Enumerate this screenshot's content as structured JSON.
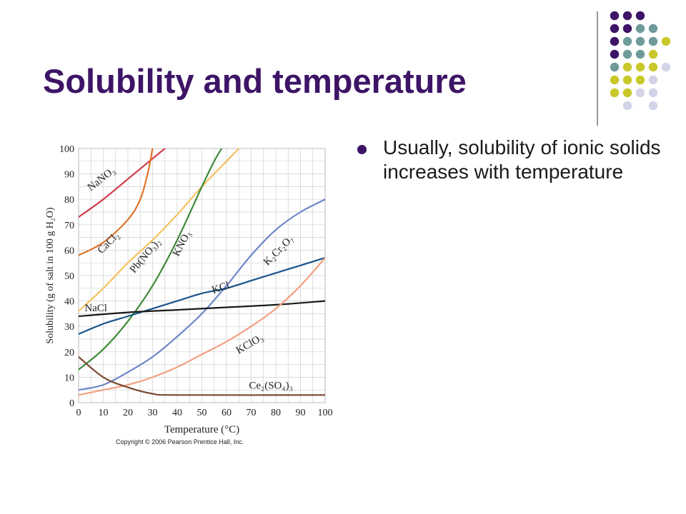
{
  "slide": {
    "title": "Solubility and temperature",
    "bullets": [
      "Usually, solubility of ionic solids increases with temperature"
    ],
    "copyright": "Copyright © 2006 Pearson Prentice Hall, Inc."
  },
  "decor": {
    "dot_grid_rows": [
      [
        "purple",
        "purple",
        "purple",
        null,
        null
      ],
      [
        "purple",
        "purple",
        "teal",
        "teal",
        null
      ],
      [
        "purple",
        "teal",
        "teal",
        "teal",
        "lime"
      ],
      [
        "purple",
        "teal",
        "teal",
        "lime",
        null
      ],
      [
        "teal",
        "lime",
        "lime",
        "lime",
        "lavender"
      ],
      [
        "lime",
        "lime",
        "lime",
        "lavender",
        null
      ],
      [
        "lime",
        "lime",
        "lavender",
        "lavender",
        null
      ],
      [
        null,
        "lavender",
        null,
        "lavender",
        null
      ]
    ],
    "colors": {
      "purple": "#3d1466",
      "teal": "#6e9a9a",
      "lime": "#c9c82a",
      "lavender": "#d3d3e8"
    }
  },
  "chart_data": {
    "type": "line",
    "xlabel": "Temperature (°C)",
    "ylabel": "Solubility (g of salt in 100 g H₂O)",
    "xlim": [
      0,
      100
    ],
    "ylim": [
      0,
      100
    ],
    "xticks": [
      0,
      10,
      20,
      30,
      40,
      50,
      60,
      70,
      80,
      90,
      100
    ],
    "yticks": [
      0,
      10,
      20,
      30,
      40,
      50,
      60,
      70,
      80,
      90,
      100
    ],
    "grid": true,
    "series": [
      {
        "name": "NaNO₃",
        "color": "#d13a4a",
        "points": [
          [
            0,
            73
          ],
          [
            10,
            80
          ],
          [
            20,
            88
          ],
          [
            30,
            96
          ],
          [
            35,
            100
          ]
        ]
      },
      {
        "name": "CaCl₂",
        "color": "#e0742a",
        "points": [
          [
            0,
            58
          ],
          [
            10,
            63
          ],
          [
            20,
            72
          ],
          [
            25,
            80
          ],
          [
            28,
            90
          ],
          [
            30,
            100
          ]
        ]
      },
      {
        "name": "Pb(NO₃)₂",
        "color": "#f5c260",
        "points": [
          [
            0,
            36
          ],
          [
            10,
            45
          ],
          [
            20,
            55
          ],
          [
            30,
            64
          ],
          [
            40,
            74
          ],
          [
            50,
            85
          ],
          [
            60,
            95
          ],
          [
            65,
            100
          ]
        ]
      },
      {
        "name": "KNO₃",
        "color": "#3e8a36",
        "points": [
          [
            0,
            13
          ],
          [
            10,
            21
          ],
          [
            20,
            32
          ],
          [
            30,
            46
          ],
          [
            40,
            64
          ],
          [
            50,
            85
          ],
          [
            55,
            95
          ],
          [
            58,
            100
          ]
        ]
      },
      {
        "name": "K₂Cr₂O₇",
        "color": "#6e86c8",
        "points": [
          [
            0,
            5
          ],
          [
            10,
            7
          ],
          [
            20,
            12
          ],
          [
            30,
            18
          ],
          [
            40,
            26
          ],
          [
            50,
            35
          ],
          [
            60,
            46
          ],
          [
            70,
            58
          ],
          [
            80,
            68
          ],
          [
            90,
            75
          ],
          [
            100,
            80
          ]
        ]
      },
      {
        "name": "KCl",
        "color": "#18558a",
        "points": [
          [
            0,
            27
          ],
          [
            10,
            31
          ],
          [
            20,
            34
          ],
          [
            30,
            37
          ],
          [
            40,
            40
          ],
          [
            50,
            43
          ],
          [
            60,
            45
          ],
          [
            70,
            48
          ],
          [
            80,
            51
          ],
          [
            90,
            54
          ],
          [
            100,
            57
          ]
        ]
      },
      {
        "name": "NaCl",
        "color": "#1a1a1a",
        "points": [
          [
            0,
            34
          ],
          [
            20,
            35.5
          ],
          [
            40,
            36.5
          ],
          [
            60,
            37.5
          ],
          [
            80,
            38.5
          ],
          [
            100,
            40
          ]
        ]
      },
      {
        "name": "KClO₃",
        "color": "#f2a080",
        "points": [
          [
            0,
            3
          ],
          [
            10,
            5
          ],
          [
            20,
            7
          ],
          [
            30,
            10
          ],
          [
            40,
            14
          ],
          [
            50,
            19
          ],
          [
            60,
            24
          ],
          [
            70,
            30
          ],
          [
            80,
            37
          ],
          [
            90,
            46
          ],
          [
            100,
            57
          ]
        ]
      },
      {
        "name": "Ce₂(SO₄)₃",
        "color": "#7a4a33",
        "points": [
          [
            0,
            18
          ],
          [
            10,
            10
          ],
          [
            20,
            6
          ],
          [
            30,
            3.5
          ],
          [
            40,
            3
          ],
          [
            100,
            3
          ]
        ]
      }
    ],
    "curve_labels": [
      {
        "text": "NaNO₃",
        "x": 10,
        "y": 87,
        "angle": -38
      },
      {
        "text": "CaCl₂",
        "x": 13,
        "y": 62,
        "angle": -45
      },
      {
        "text": "Pb(NO₃)₂",
        "x": 28,
        "y": 57,
        "angle": -50
      },
      {
        "text": "KNO₃",
        "x": 43,
        "y": 62,
        "angle": -62
      },
      {
        "text": "K₂Cr₂O₇",
        "x": 82,
        "y": 59,
        "angle": -45
      },
      {
        "text": "KCl",
        "x": 58,
        "y": 44,
        "angle": -18
      },
      {
        "text": "NaCl",
        "x": 7,
        "y": 36,
        "angle": 0
      },
      {
        "text": "KClO₃",
        "x": 70,
        "y": 22,
        "angle": -30
      },
      {
        "text": "Ce₂(SO₄)₃",
        "x": 78,
        "y": 5.5,
        "angle": 0
      }
    ]
  }
}
